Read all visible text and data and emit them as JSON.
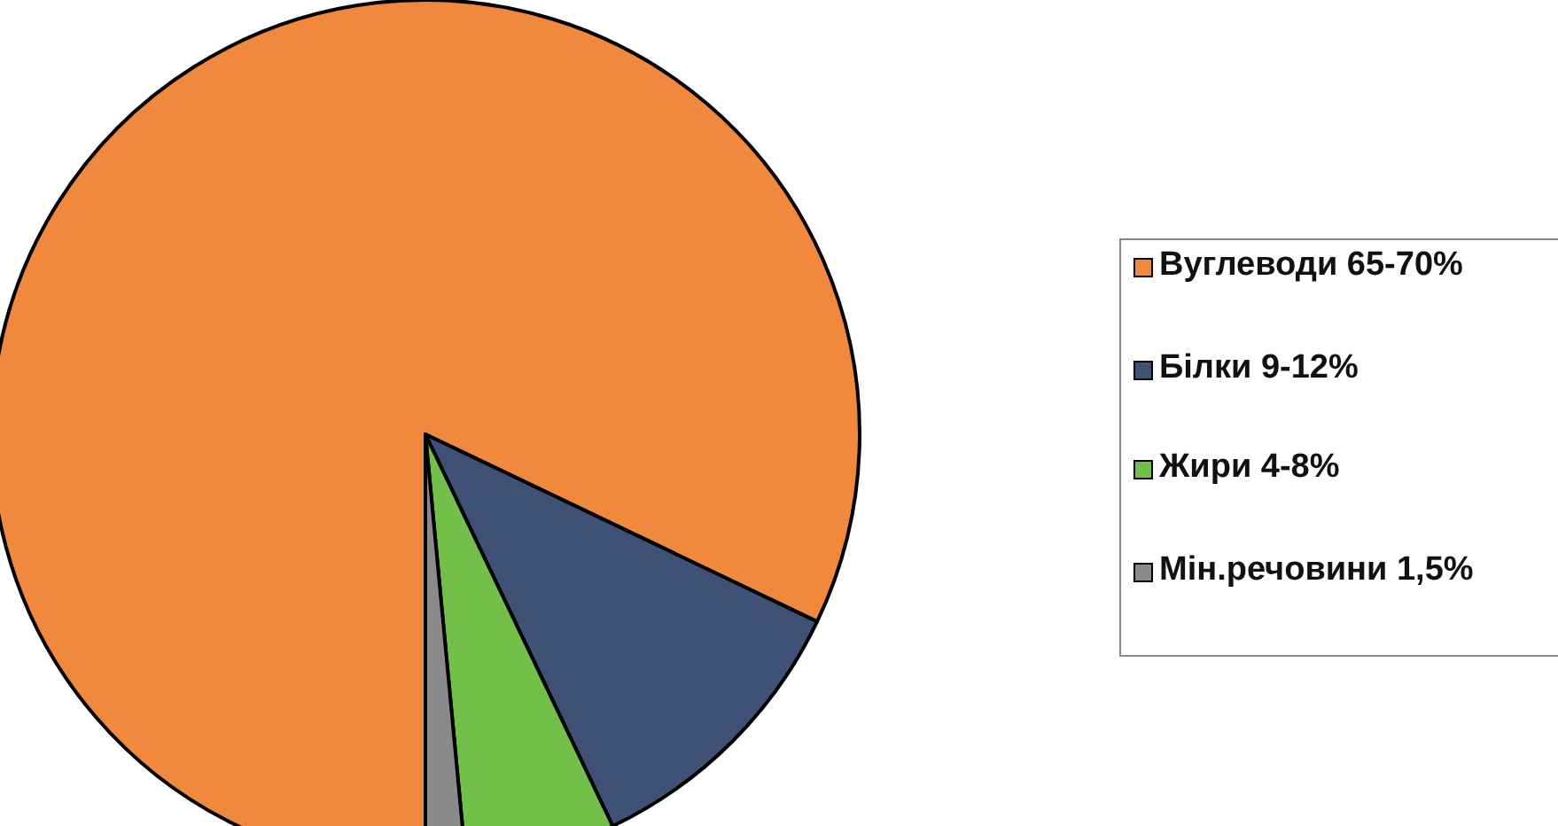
{
  "chart_data": {
    "type": "pie",
    "categories": [
      "Вуглеводи 65-70%",
      "Білки 9-12%",
      "Жири 4-8%",
      "Мін.речовини 1,5%"
    ],
    "values": [
      82.1,
      10.8,
      5.6,
      1.5
    ],
    "colors": [
      "#f0883e",
      "#3f5275",
      "#72c04a",
      "#8a8a8a"
    ],
    "legend": "right"
  }
}
